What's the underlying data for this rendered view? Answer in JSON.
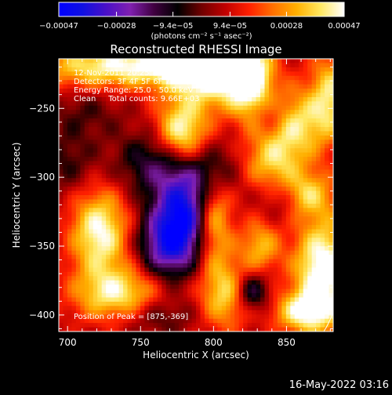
{
  "chart_data": {
    "type": "heatmap",
    "title": "Reconstructed RHESSI Image",
    "xlabel": "Heliocentric X (arcsec)",
    "ylabel": "Heliocentric Y (arcsec)",
    "xlim": [
      694,
      882
    ],
    "ylim": [
      -412,
      -214
    ],
    "xticks": [
      700,
      750,
      800,
      850
    ],
    "yticks": [
      -250,
      -300,
      -350,
      -400
    ],
    "xtick_labels": [
      "700",
      "750",
      "800",
      "850"
    ],
    "ytick_labels": [
      "−250",
      "−300",
      "−350",
      "−400"
    ],
    "colorbar": {
      "min": -0.00047,
      "max": 0.00047,
      "ticks": [
        -0.00047,
        -0.00028,
        -9.4e-05,
        9.4e-05,
        0.00028,
        0.00047
      ],
      "tick_labels": [
        "−0.00047",
        "−0.00028",
        "−9.4e−05",
        "9.4e−05",
        "0.00028",
        "0.00047"
      ],
      "label": "(photons cm⁻² s⁻¹ asec⁻²)",
      "colors": [
        "#0000ff",
        "#1010e0",
        "#4a10c8",
        "#8020b0",
        "#400040",
        "#000000",
        "#700000",
        "#c00000",
        "#ff2000",
        "#ff7000",
        "#ffb000",
        "#ffe860",
        "#ffffff"
      ]
    },
    "annotations": [
      "12-Nov-2011 20:25:16.000 to 20:31:16.000",
      "Detectors: 3F 4F 5F 6F 7F 8F, Att 0",
      "Energy Range: 25.0 - 50.0 keV",
      "Clean     Total counts: 9.66E+03"
    ],
    "peak_label": "Position of Peak = [875,-369]",
    "peak": [
      875,
      -369
    ],
    "features": [
      {
        "x": 718,
        "y": -220,
        "value": 0.0003,
        "sx": 30,
        "sy": 12
      },
      {
        "x": 800,
        "y": -224,
        "value": 0.00045,
        "sx": 22,
        "sy": 18
      },
      {
        "x": 770,
        "y": -218,
        "value": 0.0003,
        "sx": 28,
        "sy": 10
      },
      {
        "x": 778,
        "y": -268,
        "value": 0.0004,
        "sx": 12,
        "sy": 16
      },
      {
        "x": 825,
        "y": -228,
        "value": 0.00035,
        "sx": 10,
        "sy": 20
      },
      {
        "x": 855,
        "y": -262,
        "value": 0.00032,
        "sx": 16,
        "sy": 18
      },
      {
        "x": 840,
        "y": -290,
        "value": 0.00025,
        "sx": 14,
        "sy": 14
      },
      {
        "x": 880,
        "y": -240,
        "value": 0.0003,
        "sx": 10,
        "sy": 22
      },
      {
        "x": 722,
        "y": -340,
        "value": 0.0004,
        "sx": 14,
        "sy": 22
      },
      {
        "x": 735,
        "y": -385,
        "value": 0.00035,
        "sx": 22,
        "sy": 14
      },
      {
        "x": 800,
        "y": -330,
        "value": 0.00035,
        "sx": 9,
        "sy": 24
      },
      {
        "x": 808,
        "y": -385,
        "value": 0.0003,
        "sx": 12,
        "sy": 18
      },
      {
        "x": 832,
        "y": -350,
        "value": 0.00025,
        "sx": 10,
        "sy": 14
      },
      {
        "x": 862,
        "y": -312,
        "value": 0.00028,
        "sx": 14,
        "sy": 12
      },
      {
        "x": 875,
        "y": -369,
        "value": 0.00047,
        "sx": 14,
        "sy": 28
      },
      {
        "x": 860,
        "y": -398,
        "value": 0.0003,
        "sx": 14,
        "sy": 10
      },
      {
        "x": 700,
        "y": -290,
        "value": -0.00012,
        "sx": 14,
        "sy": 16
      },
      {
        "x": 712,
        "y": -252,
        "value": -0.0001,
        "sx": 18,
        "sy": 14
      },
      {
        "x": 780,
        "y": -325,
        "value": -0.00045,
        "sx": 14,
        "sy": 22
      },
      {
        "x": 768,
        "y": -350,
        "value": -0.00035,
        "sx": 14,
        "sy": 18
      },
      {
        "x": 760,
        "y": -290,
        "value": -0.00022,
        "sx": 18,
        "sy": 16
      },
      {
        "x": 800,
        "y": -295,
        "value": -0.00018,
        "sx": 12,
        "sy": 14
      },
      {
        "x": 826,
        "y": -383,
        "value": -0.00028,
        "sx": 8,
        "sy": 10
      },
      {
        "x": 847,
        "y": -315,
        "value": -0.00015,
        "sx": 10,
        "sy": 12
      },
      {
        "x": 840,
        "y": -255,
        "value": -0.00015,
        "sx": 8,
        "sy": 10
      },
      {
        "x": 760,
        "y": -400,
        "value": -0.00015,
        "sx": 18,
        "sy": 10
      }
    ]
  },
  "footer": {
    "date": "16-May-2022 03:16"
  }
}
